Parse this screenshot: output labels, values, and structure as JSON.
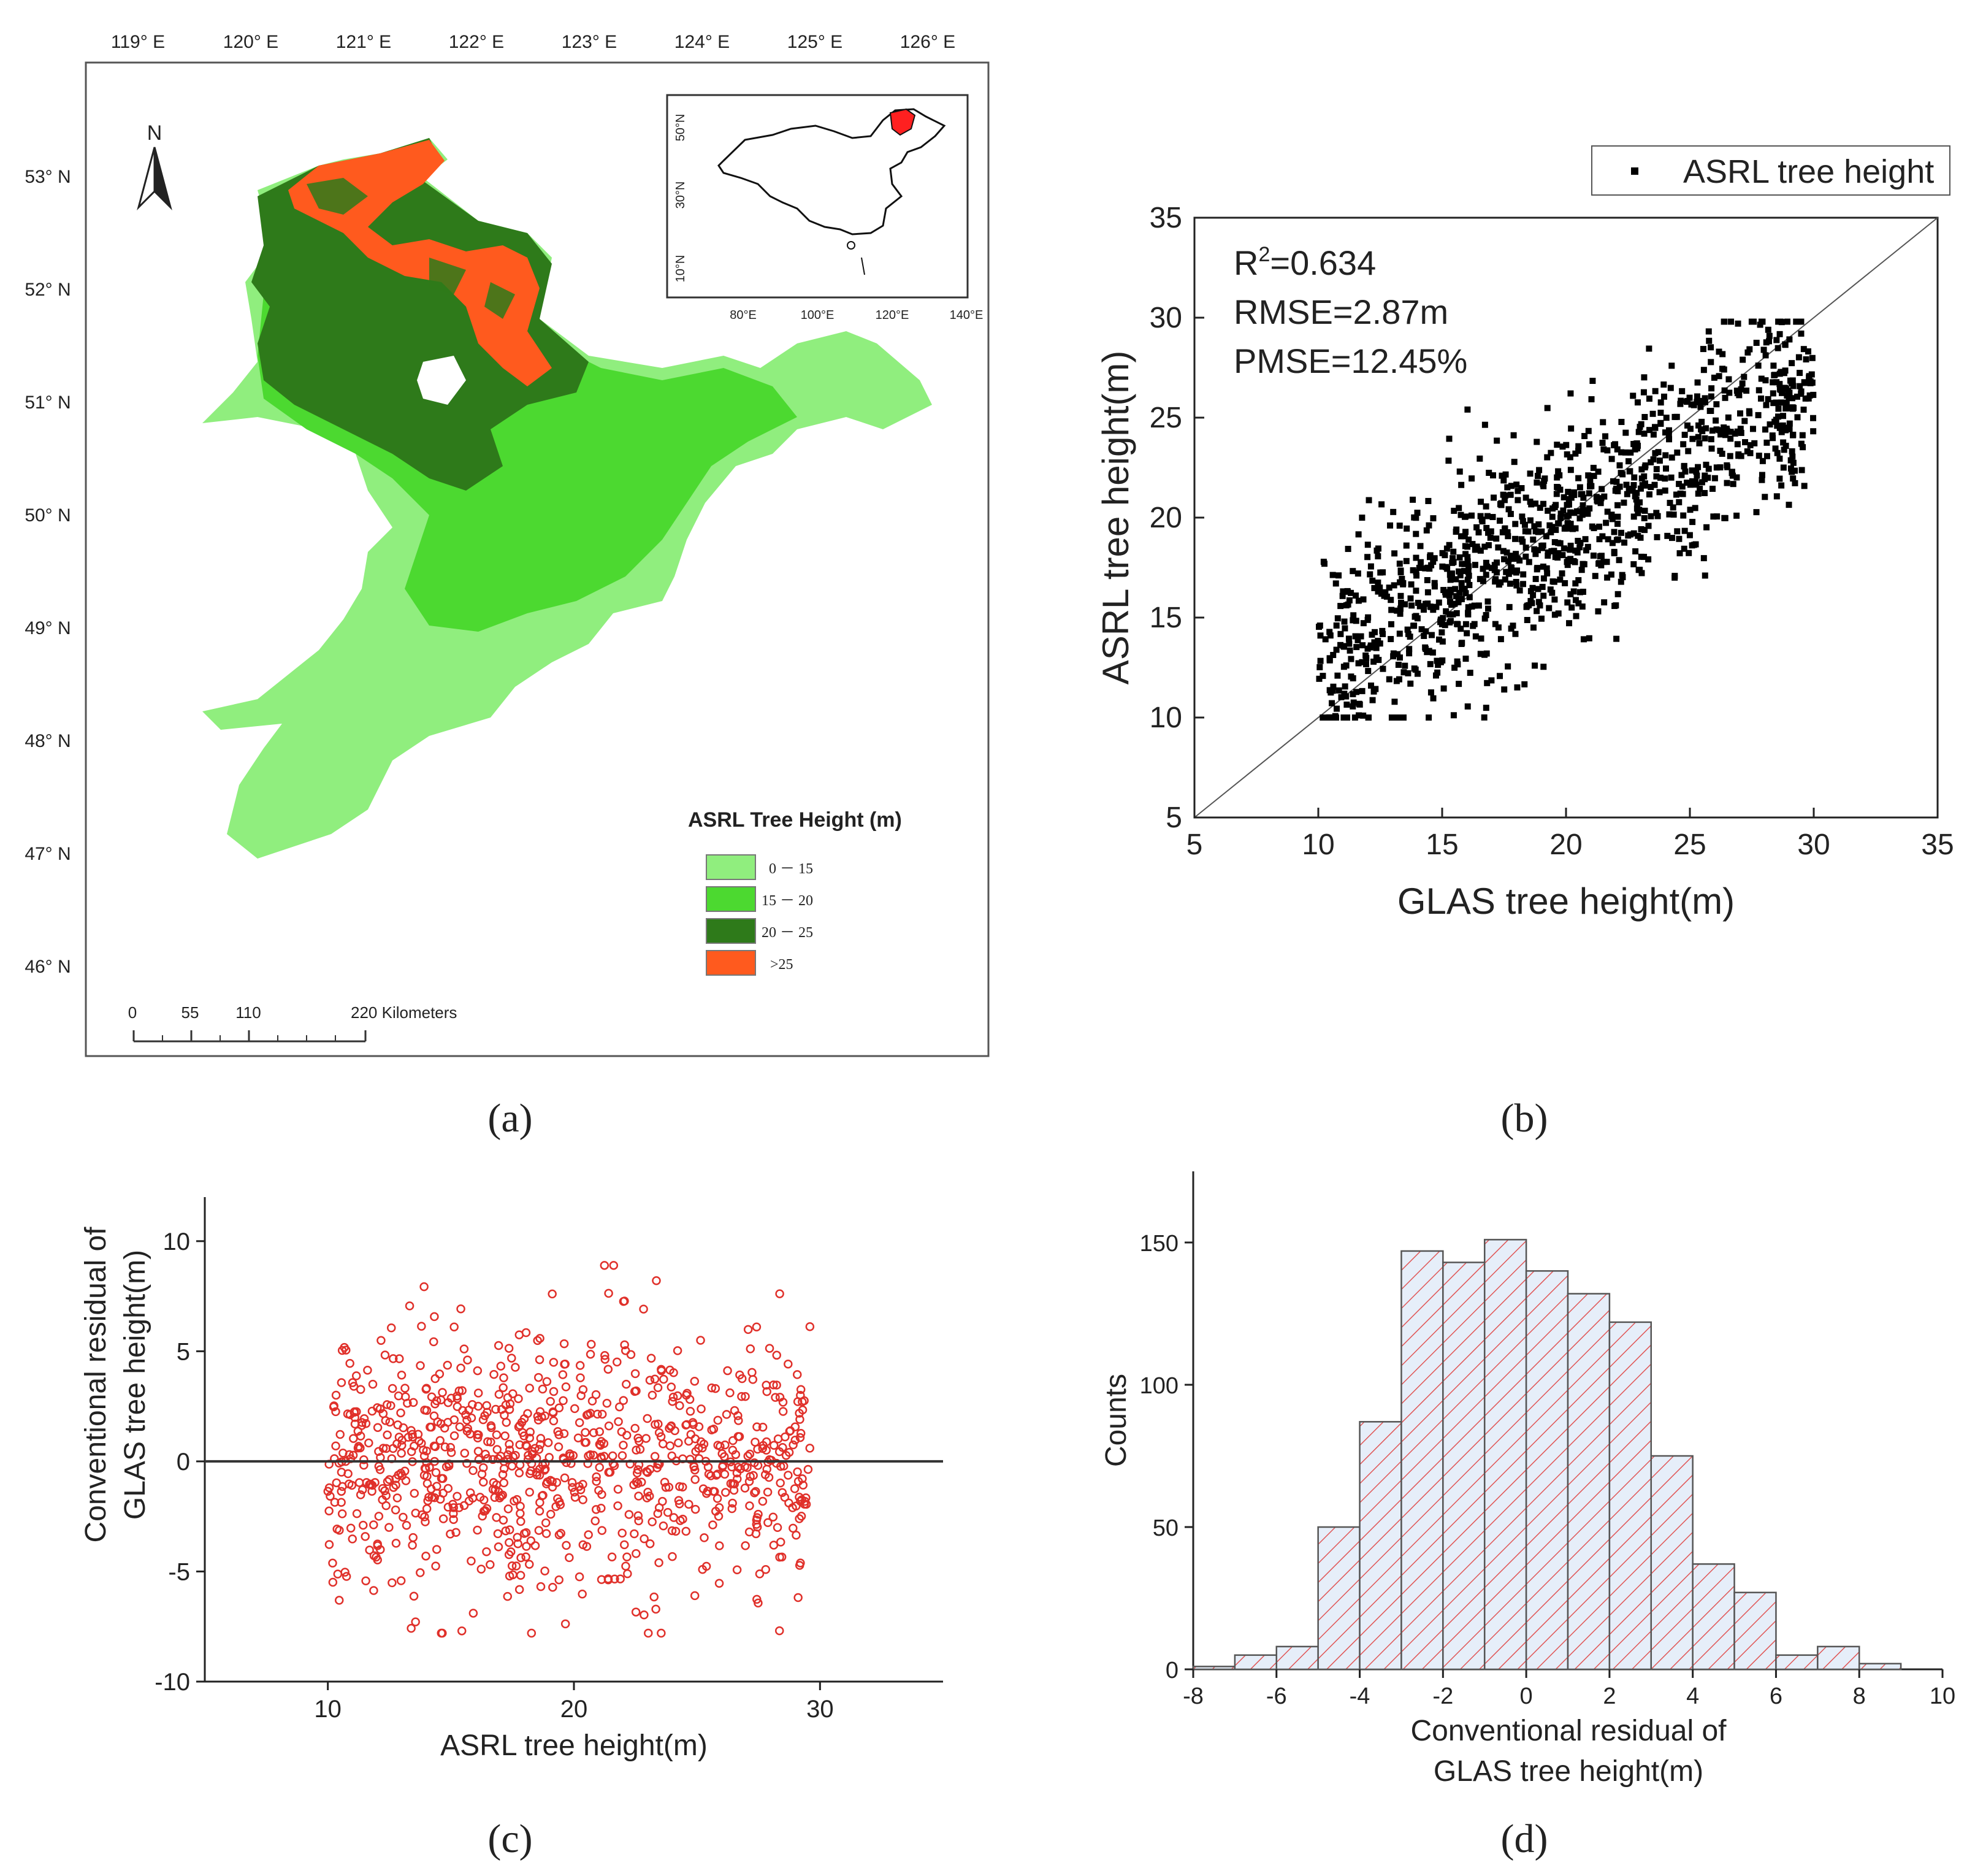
{
  "map": {
    "lon_labels": [
      "119° E",
      "120° E",
      "121° E",
      "122° E",
      "123° E",
      "124° E",
      "125° E",
      "126° E"
    ],
    "lat_labels": [
      "53° N",
      "52° N",
      "51° N",
      "50° N",
      "49° N",
      "48° N",
      "47° N",
      "46° N"
    ],
    "north_label": "N",
    "inset": {
      "lon_labels": [
        "80°E",
        "100°E",
        "120°E",
        "140°E"
      ],
      "lat_labels": [
        "50°N",
        "30°N",
        "10°N"
      ]
    },
    "legend": {
      "title": "ASRL Tree Height (m)",
      "items": [
        {
          "label": "0 － 15",
          "color": "#90ee7e"
        },
        {
          "label": "15 － 20",
          "color": "#4cd930"
        },
        {
          "label": "20 － 25",
          "color": "#2e7a1a"
        },
        {
          "label": ">25",
          "color": "#ff5a1e"
        }
      ]
    },
    "scalebar": {
      "labels": [
        "0",
        "55",
        "110",
        "220 Kilometers"
      ]
    }
  },
  "panel_labels": {
    "a": "(a)",
    "b": "(b)",
    "c": "(c)",
    "d": "(d)"
  },
  "chart_data": [
    {
      "panel": "b",
      "type": "scatter",
      "xlabel": "GLAS tree height(m)",
      "ylabel": "ASRL tree height(m)",
      "xlim": [
        5,
        35
      ],
      "ylim": [
        5,
        35
      ],
      "xticks": [
        5,
        10,
        15,
        20,
        25,
        30,
        35
      ],
      "yticks": [
        5,
        10,
        15,
        20,
        25,
        30,
        35
      ],
      "legend": "ASRL tree height",
      "annotations": [
        "R",
        "2",
        "=0.634",
        "RMSE=2.87m",
        "PMSE=12.45%"
      ],
      "reference_line": "1:1",
      "n_points": 1200,
      "point_color": "#000000"
    },
    {
      "panel": "c",
      "type": "scatter",
      "xlabel": "ASRL tree height(m)",
      "ylabel_lines": [
        "Conventional residual of",
        "GLAS tree height(m)"
      ],
      "xlim": [
        5,
        35
      ],
      "ylim": [
        -10,
        12
      ],
      "xticks": [
        10,
        20,
        30
      ],
      "yticks": [
        -10,
        -5,
        0,
        5,
        10
      ],
      "reference_line_y": 0,
      "n_points": 900,
      "point_color": "#e0302a"
    },
    {
      "panel": "d",
      "type": "bar",
      "xlabel_lines": [
        "Conventional residual of",
        "GLAS tree height(m)"
      ],
      "ylabel": "Counts",
      "xlim": [
        -8,
        10
      ],
      "ylim": [
        0,
        175
      ],
      "xticks": [
        -8,
        -6,
        -4,
        -2,
        0,
        2,
        4,
        6,
        8,
        10
      ],
      "yticks": [
        0,
        50,
        100,
        150
      ],
      "bin_edges": [
        -8,
        -7,
        -6,
        -5,
        -4,
        -3,
        -2,
        -1,
        0,
        1,
        2,
        3,
        4,
        5,
        6,
        7,
        8,
        9
      ],
      "counts": [
        1,
        5,
        8,
        50,
        87,
        147,
        143,
        151,
        140,
        132,
        122,
        75,
        37,
        27,
        5,
        8,
        2
      ]
    }
  ]
}
